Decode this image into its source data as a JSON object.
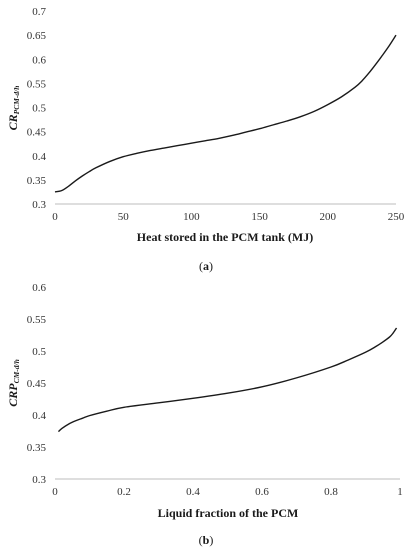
{
  "chart_data": [
    {
      "type": "line",
      "panel_label": "a",
      "title": "",
      "xlabel": "Heat stored in the PCM tank (MJ)",
      "ylabel_main": "CR",
      "ylabel_sub": "PCM-d/h",
      "xlim": [
        0,
        250
      ],
      "ylim": [
        0.3,
        0.7
      ],
      "xticks": [
        0,
        50,
        100,
        150,
        200,
        250
      ],
      "yticks": [
        0.3,
        0.35,
        0.4,
        0.45,
        0.5,
        0.55,
        0.6,
        0.65,
        0.7
      ],
      "grid": false,
      "series": [
        {
          "x": [
            0,
            5,
            10,
            15,
            20,
            25,
            30,
            40,
            50,
            60,
            70,
            80,
            90,
            100,
            110,
            120,
            130,
            140,
            150,
            160,
            170,
            180,
            190,
            200,
            210,
            220,
            225,
            230,
            235,
            240,
            245,
            250
          ],
          "y": [
            0.325,
            0.328,
            0.337,
            0.348,
            0.358,
            0.367,
            0.375,
            0.388,
            0.398,
            0.405,
            0.411,
            0.416,
            0.421,
            0.426,
            0.431,
            0.436,
            0.442,
            0.449,
            0.456,
            0.464,
            0.472,
            0.481,
            0.492,
            0.506,
            0.522,
            0.542,
            0.555,
            0.571,
            0.589,
            0.608,
            0.628,
            0.65
          ]
        }
      ]
    },
    {
      "type": "line",
      "panel_label": "b",
      "title": "",
      "xlabel": "Liquid fraction of the PCM",
      "ylabel_main": "CRP",
      "ylabel_sub": "CM-d/h",
      "xlim": [
        0,
        1
      ],
      "ylim": [
        0.3,
        0.6
      ],
      "xticks": [
        0,
        0.2,
        0.4,
        0.6,
        0.8,
        1
      ],
      "yticks": [
        0.3,
        0.35,
        0.4,
        0.45,
        0.5,
        0.55,
        0.6
      ],
      "grid": false,
      "series": [
        {
          "x": [
            0.01,
            0.02,
            0.04,
            0.06,
            0.08,
            0.1,
            0.15,
            0.2,
            0.3,
            0.4,
            0.5,
            0.6,
            0.7,
            0.8,
            0.85,
            0.9,
            0.93,
            0.95,
            0.97,
            0.98,
            0.99
          ],
          "y": [
            0.374,
            0.379,
            0.386,
            0.391,
            0.395,
            0.399,
            0.406,
            0.412,
            0.419,
            0.426,
            0.434,
            0.444,
            0.458,
            0.475,
            0.486,
            0.498,
            0.507,
            0.514,
            0.522,
            0.528,
            0.536
          ]
        }
      ]
    }
  ]
}
